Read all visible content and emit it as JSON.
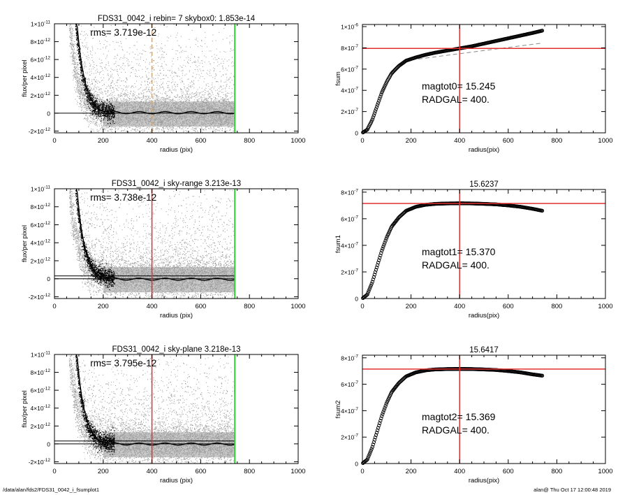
{
  "footer": {
    "left": "/data/alan/fds2/FDS31_0042_i_fsumplot1",
    "right": "alan@  Thu Oct 17 12:00:48 2019"
  },
  "colors": {
    "scatter": "#9a9a9a",
    "profile": "#000000",
    "red_line": "#e03030",
    "green_line": "#30d030",
    "orange_line": "#f0a040",
    "dash_line": "#888888"
  },
  "chart_data": [
    {
      "id": "p1",
      "type": "scatter",
      "title": "FDS31_0042_i rebin= 7    skybox0:  1.853e-14",
      "annotation": "rms= 3.719e-12",
      "xlabel": "radius (pix)",
      "ylabel": "flux/per pixel",
      "xlim": [
        0,
        1000
      ],
      "ylim": [
        -2.2e-12,
        1e-11
      ],
      "xticks": [
        "0",
        "200",
        "400",
        "600",
        "800",
        "1000"
      ],
      "yticks": [
        {
          "v": -2e-12,
          "m": "-2×10",
          "e": "-12"
        },
        {
          "v": 0,
          "m": "0",
          "e": ""
        },
        {
          "v": 2e-12,
          "m": "2×10",
          "e": "-12"
        },
        {
          "v": 4e-12,
          "m": "4×10",
          "e": "-12"
        },
        {
          "v": 6e-12,
          "m": "6×10",
          "e": "-12"
        },
        {
          "v": 8e-12,
          "m": "8×10",
          "e": "-12"
        },
        {
          "v": 1e-11,
          "m": "1×10",
          "e": "-11"
        }
      ],
      "vlines": [
        {
          "x": 400,
          "color": "orange",
          "dashed": true
        },
        {
          "x": 740,
          "color": "green"
        }
      ],
      "hlines": [
        0
      ],
      "profile_level": 0.05
    },
    {
      "id": "p2",
      "type": "scatter",
      "title": "FDS31_0042_i sky-range  3.213e-13",
      "annotation": "rms= 3.738e-12",
      "xlabel": "radius (pix)",
      "ylabel": "flux/per pixel",
      "xlim": [
        0,
        1000
      ],
      "ylim": [
        -2.2e-12,
        1e-11
      ],
      "xticks": [
        "0",
        "200",
        "400",
        "600",
        "800",
        "1000"
      ],
      "yticks": [
        {
          "v": -2e-12,
          "m": "-2×10",
          "e": "-12"
        },
        {
          "v": 0,
          "m": "0",
          "e": ""
        },
        {
          "v": 2e-12,
          "m": "2×10",
          "e": "-12"
        },
        {
          "v": 4e-12,
          "m": "4×10",
          "e": "-12"
        },
        {
          "v": 6e-12,
          "m": "6×10",
          "e": "-12"
        },
        {
          "v": 8e-12,
          "m": "8×10",
          "e": "-12"
        },
        {
          "v": 1e-11,
          "m": "1×10",
          "e": "-11"
        }
      ],
      "vlines": [
        {
          "x": 400,
          "color": "red"
        },
        {
          "x": 740,
          "color": "green"
        }
      ],
      "hlines": [
        0,
        3.2e-13
      ],
      "profile_level": -0.05
    },
    {
      "id": "p3",
      "type": "scatter",
      "title": "FDS31_0042_i sky-plane  3.218e-13",
      "annotation": "rms= 3.795e-12",
      "xlabel": "radius (pix)",
      "ylabel": "flux/per pixel",
      "xlim": [
        0,
        1000
      ],
      "ylim": [
        -2.2e-12,
        1e-11
      ],
      "xticks": [
        "0",
        "200",
        "400",
        "600",
        "800",
        "1000"
      ],
      "yticks": [
        {
          "v": -2e-12,
          "m": "-2×10",
          "e": "-12"
        },
        {
          "v": 0,
          "m": "0",
          "e": ""
        },
        {
          "v": 2e-12,
          "m": "2×10",
          "e": "-12"
        },
        {
          "v": 4e-12,
          "m": "4×10",
          "e": "-12"
        },
        {
          "v": 6e-12,
          "m": "6×10",
          "e": "-12"
        },
        {
          "v": 8e-12,
          "m": "8×10",
          "e": "-12"
        },
        {
          "v": 1e-11,
          "m": "1×10",
          "e": "-11"
        }
      ],
      "vlines": [
        {
          "x": 400,
          "color": "red"
        },
        {
          "x": 740,
          "color": "green"
        }
      ],
      "hlines": [
        0,
        3.2e-13
      ],
      "profile_level": -0.02
    },
    {
      "id": "p4",
      "type": "line",
      "title": "",
      "annotation_lines": [
        "magtot0=  15.245",
        "RADGAL=    400."
      ],
      "xlabel": "radius(pix)",
      "ylabel": "fsum",
      "xlim": [
        0,
        1000
      ],
      "ylim": [
        0,
        1.02e-06
      ],
      "xticks": [
        "0",
        "200",
        "400",
        "600",
        "800",
        "1000"
      ],
      "yticks": [
        {
          "v": 0,
          "m": "0",
          "e": ""
        },
        {
          "v": 2e-07,
          "m": "2×10",
          "e": "-7"
        },
        {
          "v": 4e-07,
          "m": "4×10",
          "e": "-7"
        },
        {
          "v": 6e-07,
          "m": "6×10",
          "e": "-7"
        },
        {
          "v": 8e-07,
          "m": "8×10",
          "e": "-7"
        },
        {
          "v": 1e-06,
          "m": "1×10",
          "e": "-6"
        }
      ],
      "crosshair": {
        "x": 400,
        "y": 7.95e-07
      },
      "curve": {
        "x": [
          0,
          20,
          40,
          60,
          80,
          100,
          120,
          150,
          180,
          220,
          260,
          300,
          350,
          400,
          450,
          500,
          550,
          600,
          650,
          700,
          740
        ],
        "y": [
          0,
          3e-08,
          1.2e-07,
          2.5e-07,
          3.8e-07,
          4.8e-07,
          5.6e-07,
          6.3e-07,
          6.8e-07,
          7.1e-07,
          7.35e-07,
          7.55e-07,
          7.75e-07,
          7.95e-07,
          8.15e-07,
          8.4e-07,
          8.65e-07,
          8.9e-07,
          9.15e-07,
          9.4e-07,
          9.62e-07
        ]
      },
      "dashed_fit": {
        "x": [
          230,
          740
        ],
        "y": [
          6.95e-07,
          8.45e-07
        ]
      }
    },
    {
      "id": "p5",
      "type": "line",
      "title": "15.6237",
      "annotation_lines": [
        "magtot1=  15.370",
        "RADGAL=    400."
      ],
      "xlabel": "radius(pix)",
      "ylabel": "fsum1",
      "xlim": [
        0,
        1000
      ],
      "ylim": [
        0,
        8.2e-07
      ],
      "xticks": [
        "0",
        "200",
        "400",
        "600",
        "800",
        "1000"
      ],
      "yticks": [
        {
          "v": 0,
          "m": "0",
          "e": ""
        },
        {
          "v": 2e-07,
          "m": "2×10",
          "e": "-7"
        },
        {
          "v": 4e-07,
          "m": "4×10",
          "e": "-7"
        },
        {
          "v": 6e-07,
          "m": "6×10",
          "e": "-7"
        },
        {
          "v": 8e-07,
          "m": "8×10",
          "e": "-7"
        }
      ],
      "crosshair": {
        "x": 400,
        "y": 7.15e-07
      },
      "curve": {
        "x": [
          0,
          20,
          40,
          60,
          80,
          100,
          120,
          150,
          180,
          220,
          260,
          300,
          350,
          400,
          450,
          500,
          550,
          600,
          650,
          700,
          740
        ],
        "y": [
          0,
          3e-08,
          1.2e-07,
          2.4e-07,
          3.6e-07,
          4.6e-07,
          5.4e-07,
          6.1e-07,
          6.6e-07,
          6.9e-07,
          7.05e-07,
          7.12e-07,
          7.15e-07,
          7.16e-07,
          7.15e-07,
          7.12e-07,
          7.08e-07,
          7e-07,
          6.9e-07,
          6.75e-07,
          6.6e-07
        ]
      }
    },
    {
      "id": "p6",
      "type": "line",
      "title": "15.6417",
      "annotation_lines": [
        "magtot2=  15.369",
        "RADGAL=    400."
      ],
      "xlabel": "radius(pix)",
      "ylabel": "fsum2",
      "xlim": [
        0,
        1000
      ],
      "ylim": [
        0,
        8.2e-07
      ],
      "xticks": [
        "0",
        "200",
        "400",
        "600",
        "800",
        "1000"
      ],
      "yticks": [
        {
          "v": 0,
          "m": "0",
          "e": ""
        },
        {
          "v": 2e-07,
          "m": "2×10",
          "e": "-7"
        },
        {
          "v": 4e-07,
          "m": "4×10",
          "e": "-7"
        },
        {
          "v": 6e-07,
          "m": "6×10",
          "e": "-7"
        },
        {
          "v": 8e-07,
          "m": "8×10",
          "e": "-7"
        }
      ],
      "crosshair": {
        "x": 400,
        "y": 7.15e-07
      },
      "curve": {
        "x": [
          0,
          20,
          40,
          60,
          80,
          100,
          120,
          150,
          180,
          220,
          260,
          300,
          350,
          400,
          450,
          500,
          550,
          600,
          650,
          700,
          740
        ],
        "y": [
          0,
          3e-08,
          1.2e-07,
          2.4e-07,
          3.6e-07,
          4.6e-07,
          5.4e-07,
          6.1e-07,
          6.6e-07,
          6.9e-07,
          7.05e-07,
          7.12e-07,
          7.15e-07,
          7.16e-07,
          7.15e-07,
          7.12e-07,
          7.08e-07,
          7e-07,
          6.9e-07,
          6.75e-07,
          6.65e-07
        ]
      }
    }
  ]
}
